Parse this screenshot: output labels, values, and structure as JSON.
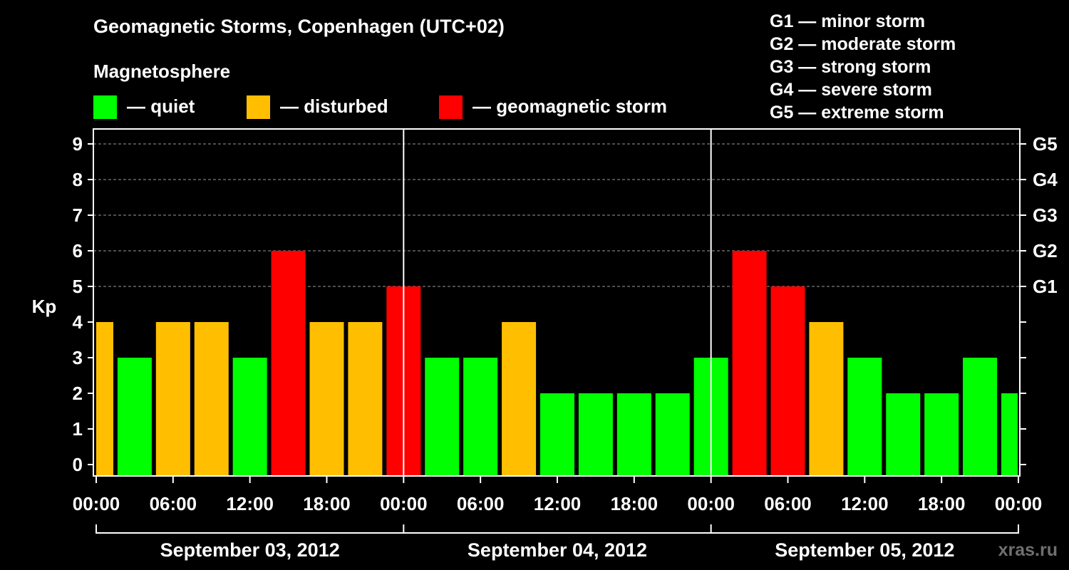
{
  "header": {
    "title": "Geomagnetic Storms, Copenhagen (UTC+02)",
    "subtitle": "Magnetosphere"
  },
  "legend": {
    "items": [
      {
        "label": "— quiet",
        "color": "#00ff00",
        "icon": "quiet-swatch"
      },
      {
        "label": "— disturbed",
        "color": "#ffbf00",
        "icon": "disturbed-swatch"
      },
      {
        "label": "— geomagnetic storm",
        "color": "#ff0000",
        "icon": "storm-swatch"
      }
    ]
  },
  "storm_scale": [
    "G1 — minor storm",
    "G2 — moderate storm",
    "G3 — strong storm",
    "G4 — severe storm",
    "G5 — extreme storm"
  ],
  "watermark": "xras.ru",
  "chart_data": {
    "type": "bar",
    "ylabel": "Kp",
    "ylim": [
      0,
      9
    ],
    "y_ticks": [
      "0",
      "1",
      "2",
      "3",
      "4",
      "5",
      "6",
      "7",
      "8",
      "9"
    ],
    "y2_ticks": [
      {
        "kp": 5,
        "label": "G1"
      },
      {
        "kp": 6,
        "label": "G2"
      },
      {
        "kp": 7,
        "label": "G3"
      },
      {
        "kp": 8,
        "label": "G4"
      },
      {
        "kp": 9,
        "label": "G5"
      }
    ],
    "x_tick_labels": [
      "00:00",
      "06:00",
      "12:00",
      "18:00",
      "00:00",
      "06:00",
      "12:00",
      "18:00",
      "00:00",
      "06:00",
      "12:00",
      "18:00",
      "00:00"
    ],
    "days": [
      "September 03, 2012",
      "September 04, 2012",
      "September 05, 2012"
    ],
    "interval_hours": 3,
    "values": [
      4,
      3,
      4,
      4,
      3,
      6,
      4,
      4,
      5,
      3,
      3,
      4,
      2,
      2,
      2,
      2,
      3,
      6,
      5,
      4,
      3,
      2,
      2,
      3,
      2
    ],
    "statuses": [
      "disturbed",
      "quiet",
      "disturbed",
      "disturbed",
      "quiet",
      "storm",
      "disturbed",
      "disturbed",
      "storm",
      "quiet",
      "quiet",
      "disturbed",
      "quiet",
      "quiet",
      "quiet",
      "quiet",
      "quiet",
      "storm",
      "storm",
      "disturbed",
      "quiet",
      "quiet",
      "quiet",
      "quiet",
      "quiet"
    ],
    "colors": {
      "quiet": "#00ff00",
      "disturbed": "#ffbf00",
      "storm": "#ff0000"
    },
    "grid": "dashed, Kp 5 to 9"
  }
}
